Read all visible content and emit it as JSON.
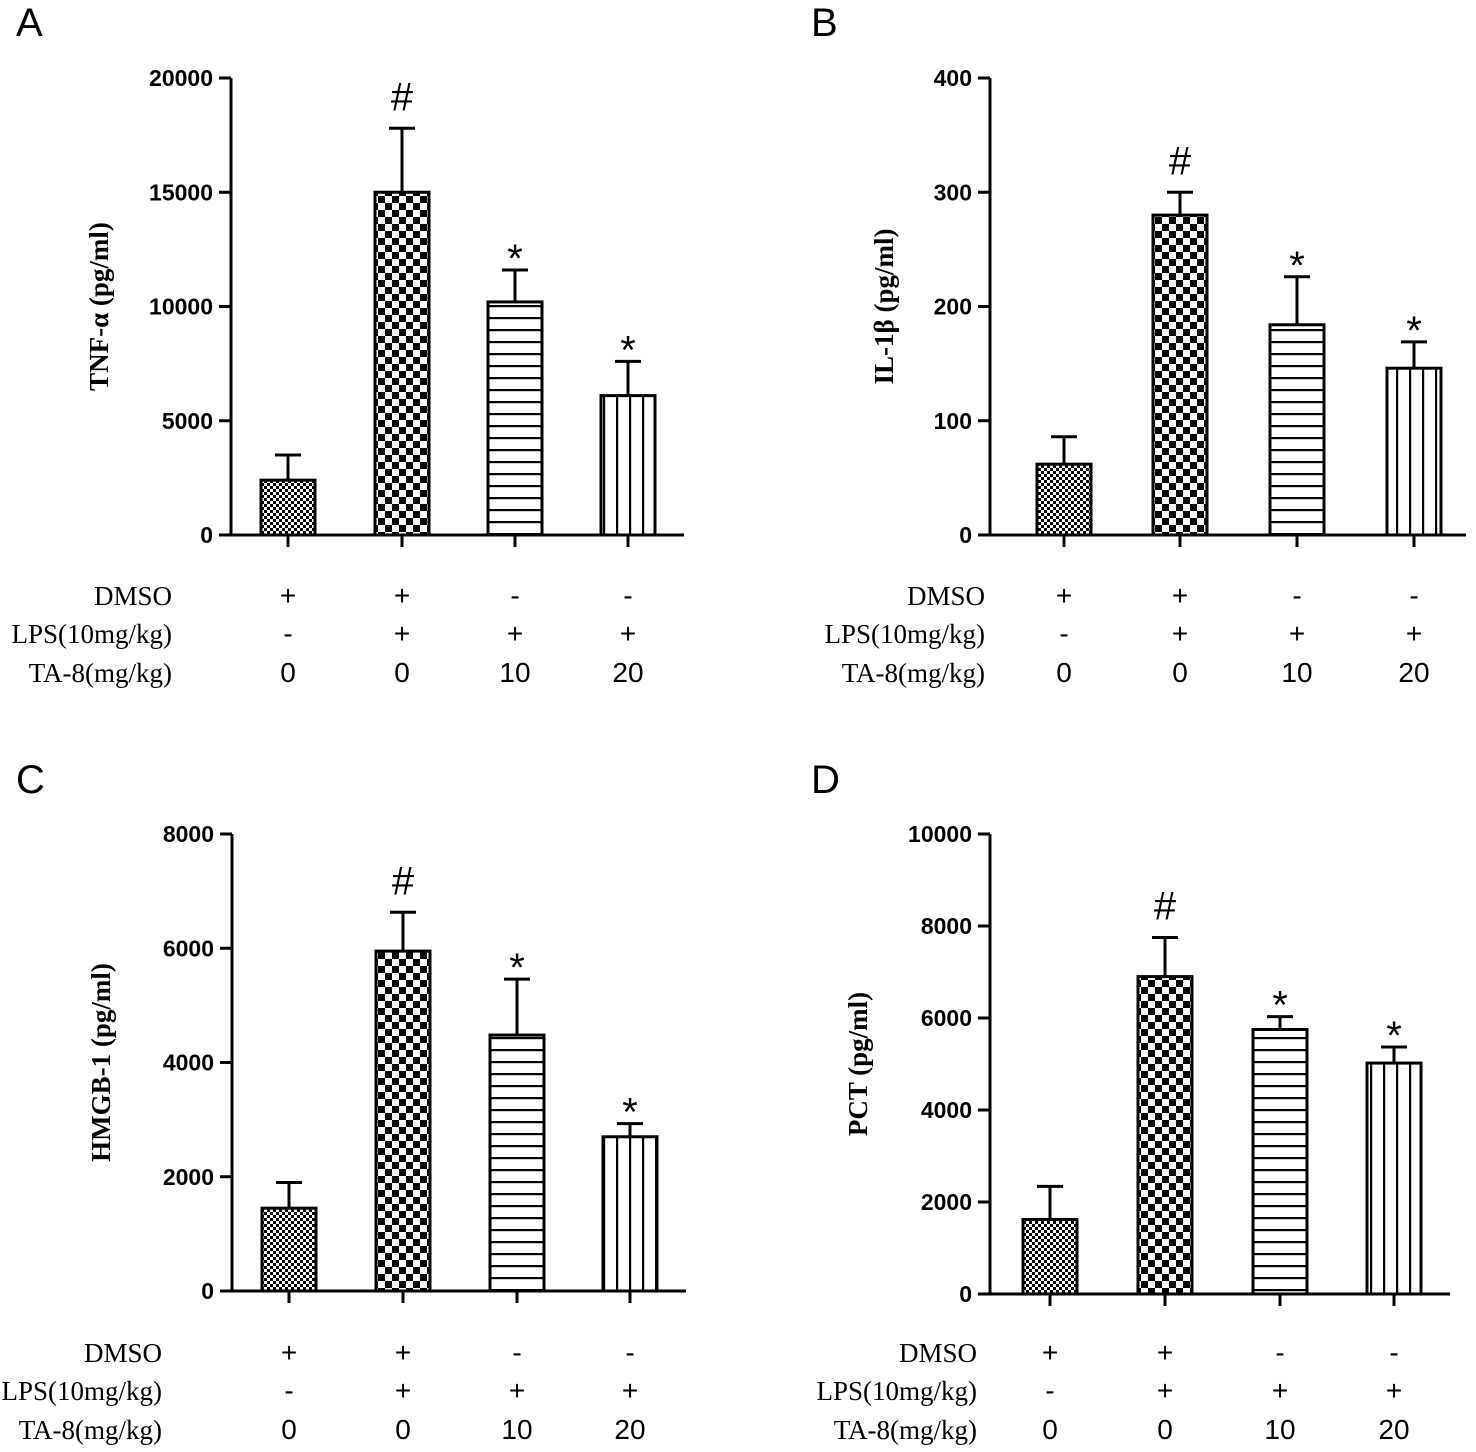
{
  "chart_data": [
    {
      "panel": "A",
      "type": "bar",
      "ylabel": "TNF-α (pg/ml)",
      "ylim": [
        0,
        20000
      ],
      "yticks": [
        "0",
        "5000",
        "10000",
        "15000",
        "20000"
      ],
      "ytick_values": [
        0,
        5000,
        10000,
        15000,
        20000
      ],
      "values": [
        2400,
        15000,
        10200,
        6100
      ],
      "errors": [
        1100,
        2800,
        1400,
        1500
      ],
      "significance": [
        "",
        "#",
        "*",
        "*"
      ],
      "patterns": [
        "fine",
        "checker",
        "hlines",
        "vlines"
      ],
      "rows": [
        {
          "label": "DMSO",
          "values": [
            "+",
            "+",
            "-",
            "-"
          ]
        },
        {
          "label": "LPS(10mg/kg)",
          "values": [
            "-",
            "+",
            "+",
            "+"
          ]
        },
        {
          "label": "TA-8(mg/kg)",
          "values": [
            "0",
            "0",
            "10",
            "20"
          ]
        }
      ]
    },
    {
      "panel": "B",
      "type": "bar",
      "ylabel": "IL-1β (pg/ml)",
      "ylim": [
        0,
        400
      ],
      "yticks": [
        "0",
        "100",
        "200",
        "300",
        "400"
      ],
      "ytick_values": [
        0,
        100,
        200,
        300,
        400
      ],
      "values": [
        62,
        280,
        184,
        146
      ],
      "errors": [
        24,
        20,
        42,
        23
      ],
      "significance": [
        "",
        "#",
        "*",
        "*"
      ],
      "patterns": [
        "fine",
        "checker",
        "hlines",
        "vlines"
      ],
      "rows": [
        {
          "label": "DMSO",
          "values": [
            "+",
            "+",
            "-",
            "-"
          ]
        },
        {
          "label": "LPS(10mg/kg)",
          "values": [
            "-",
            "+",
            "+",
            "+"
          ]
        },
        {
          "label": "TA-8(mg/kg)",
          "values": [
            "0",
            "0",
            "10",
            "20"
          ]
        }
      ]
    },
    {
      "panel": "C",
      "type": "bar",
      "ylabel": "HMGB-1 (pg/ml)",
      "ylim": [
        0,
        8000
      ],
      "yticks": [
        "0",
        "2000",
        "4000",
        "6000",
        "8000"
      ],
      "ytick_values": [
        0,
        2000,
        4000,
        6000,
        8000
      ],
      "values": [
        1450,
        5950,
        4480,
        2700
      ],
      "errors": [
        450,
        680,
        980,
        230
      ],
      "significance": [
        "",
        "#",
        "*",
        "*"
      ],
      "patterns": [
        "fine",
        "checker",
        "hlines",
        "vlines"
      ],
      "rows": [
        {
          "label": "DMSO",
          "values": [
            "+",
            "+",
            "-",
            "-"
          ]
        },
        {
          "label": "LPS(10mg/kg)",
          "values": [
            "-",
            "+",
            "+",
            "+"
          ]
        },
        {
          "label": "TA-8(mg/kg)",
          "values": [
            "0",
            "0",
            "10",
            "20"
          ]
        }
      ]
    },
    {
      "panel": "D",
      "type": "bar",
      "ylabel": "PCT (pg/ml)",
      "ylim": [
        0,
        10000
      ],
      "yticks": [
        "0",
        "2000",
        "4000",
        "6000",
        "8000",
        "10000"
      ],
      "ytick_values": [
        0,
        2000,
        4000,
        6000,
        8000,
        10000
      ],
      "values": [
        1620,
        6900,
        5750,
        5020
      ],
      "errors": [
        720,
        850,
        280,
        350
      ],
      "significance": [
        "",
        "#",
        "*",
        "*"
      ],
      "patterns": [
        "fine",
        "checker",
        "hlines",
        "vlines"
      ],
      "rows": [
        {
          "label": "DMSO",
          "values": [
            "+",
            "+",
            "-",
            "-"
          ]
        },
        {
          "label": "LPS(10mg/kg)",
          "values": [
            "-",
            "+",
            "+",
            "+"
          ]
        },
        {
          "label": "TA-8(mg/kg)",
          "values": [
            "0",
            "0",
            "10",
            "20"
          ]
        }
      ]
    }
  ]
}
